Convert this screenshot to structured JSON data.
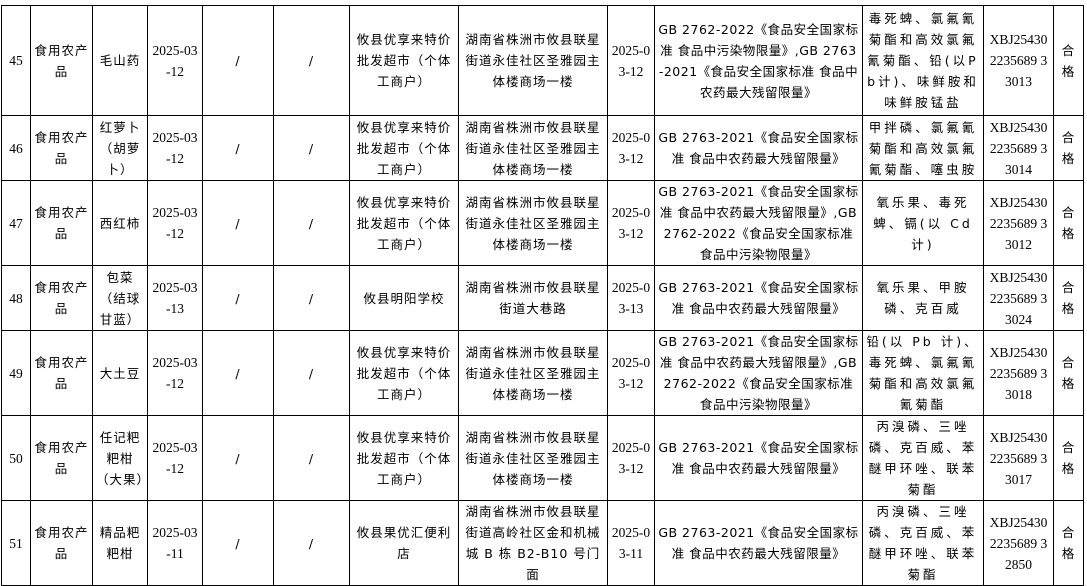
{
  "rows": [
    {
      "no": "45",
      "category": "食用农产品",
      "product": "毛山药",
      "prod_date": "2025-03-12",
      "col5": "/",
      "col6": "/",
      "seller": "攸县优享来特价批发超市（个体工商户）",
      "address": "湖南省株洲市攸县联星街道永佳社区圣雅园主体楼商场一楼",
      "sample_date": "2025-03-12",
      "standard": "GB 2762-2022《食品安全国家标准 食品中污染物限量》,GB 2763-2021《食品安全国家标准 食品中农药最大残留限量》",
      "items": "毒死蜱、氯氟氰菊酯和高效氯氟氰菊酯、铅(以Pb计)、味鲜胺和味鲜胺锰盐",
      "report_no": "XBJ254302235689 33013",
      "result": "合格"
    },
    {
      "no": "46",
      "category": "食用农产品",
      "product": "红萝卜（胡萝卜）",
      "prod_date": "2025-03-12",
      "col5": "/",
      "col6": "/",
      "seller": "攸县优享来特价批发超市（个体工商户）",
      "address": "湖南省株洲市攸县联星街道永佳社区圣雅园主体楼商场一楼",
      "sample_date": "2025-03-12",
      "standard": "GB 2763-2021《食品安全国家标准 食品中农药最大残留限量》",
      "items": "甲拌磷、氯氟氰菊酯和高效氯氟氰菊酯、噻虫胺",
      "report_no": "XBJ254302235689 33014",
      "result": "合格"
    },
    {
      "no": "47",
      "category": "食用农产品",
      "product": "西红柿",
      "prod_date": "2025-03-12",
      "col5": "/",
      "col6": "/",
      "seller": "攸县优享来特价批发超市（个体工商户）",
      "address": "湖南省株洲市攸县联星街道永佳社区圣雅园主体楼商场一楼",
      "sample_date": "2025-03-12",
      "standard": "GB 2763-2021《食品安全国家标准 食品中农药最大残留限量》,GB 2762-2022《食品安全国家标准 食品中污染物限量》",
      "items": "氧乐果、毒死蜱、镉(以 Cd 计)",
      "report_no": "XBJ254302235689 33012",
      "result": "合格"
    },
    {
      "no": "48",
      "category": "食用农产品",
      "product": "包菜（结球甘蓝）",
      "prod_date": "2025-03-13",
      "col5": "/",
      "col6": "/",
      "seller": "攸县明阳学校",
      "address": "湖南省株洲市攸县联星街道大巷路",
      "sample_date": "2025-03-13",
      "standard": "GB 2763-2021《食品安全国家标准 食品中农药最大残留限量》",
      "items": "氧乐果、甲胺磷、克百威",
      "report_no": "XBJ254302235689 33024",
      "result": "合格"
    },
    {
      "no": "49",
      "category": "食用农产品",
      "product": "大土豆",
      "prod_date": "2025-03-12",
      "col5": "/",
      "col6": "/",
      "seller": "攸县优享来特价批发超市（个体工商户）",
      "address": "湖南省株洲市攸县联星街道永佳社区圣雅园主体楼商场一楼",
      "sample_date": "2025-03-12",
      "standard": "GB 2763-2021《食品安全国家标准 食品中农药最大残留限量》,GB 2762-2022《食品安全国家标准 食品中污染物限量》",
      "items": "铅(以 Pb 计)、毒死蜱、氯氟氰菊酯和高效氯氟氰菊酯",
      "report_no": "XBJ254302235689 33018",
      "result": "合格"
    },
    {
      "no": "50",
      "category": "食用农产品",
      "product": "任记粑粑柑（大果）",
      "prod_date": "2025-03-12",
      "col5": "/",
      "col6": "/",
      "seller": "攸县优享来特价批发超市（个体工商户）",
      "address": "湖南省株洲市攸县联星街道永佳社区圣雅园主体楼商场一楼",
      "sample_date": "2025-03-12",
      "standard": "GB 2763-2021《食品安全国家标准 食品中农药最大残留限量》",
      "items": "丙溴磷、三唑磷、克百威、苯醚甲环唑、联苯菊酯",
      "report_no": "XBJ254302235689 33017",
      "result": "合格"
    },
    {
      "no": "51",
      "category": "食用农产品",
      "product": "精品粑粑柑",
      "prod_date": "2025-03-11",
      "col5": "/",
      "col6": "/",
      "seller": "攸县果优汇便利店",
      "address": "湖南省株洲市攸县联星街道高岭社区金和机械城 B 栋 B2-B10 号门面",
      "sample_date": "2025-03-11",
      "standard": "GB 2763-2021《食品安全国家标准 食品中农药最大残留限量》",
      "items": "丙溴磷、三唑磷、克百威、苯醚甲环唑、联苯菊酯",
      "report_no": "XBJ254302235689 32850",
      "result": "合格"
    }
  ]
}
